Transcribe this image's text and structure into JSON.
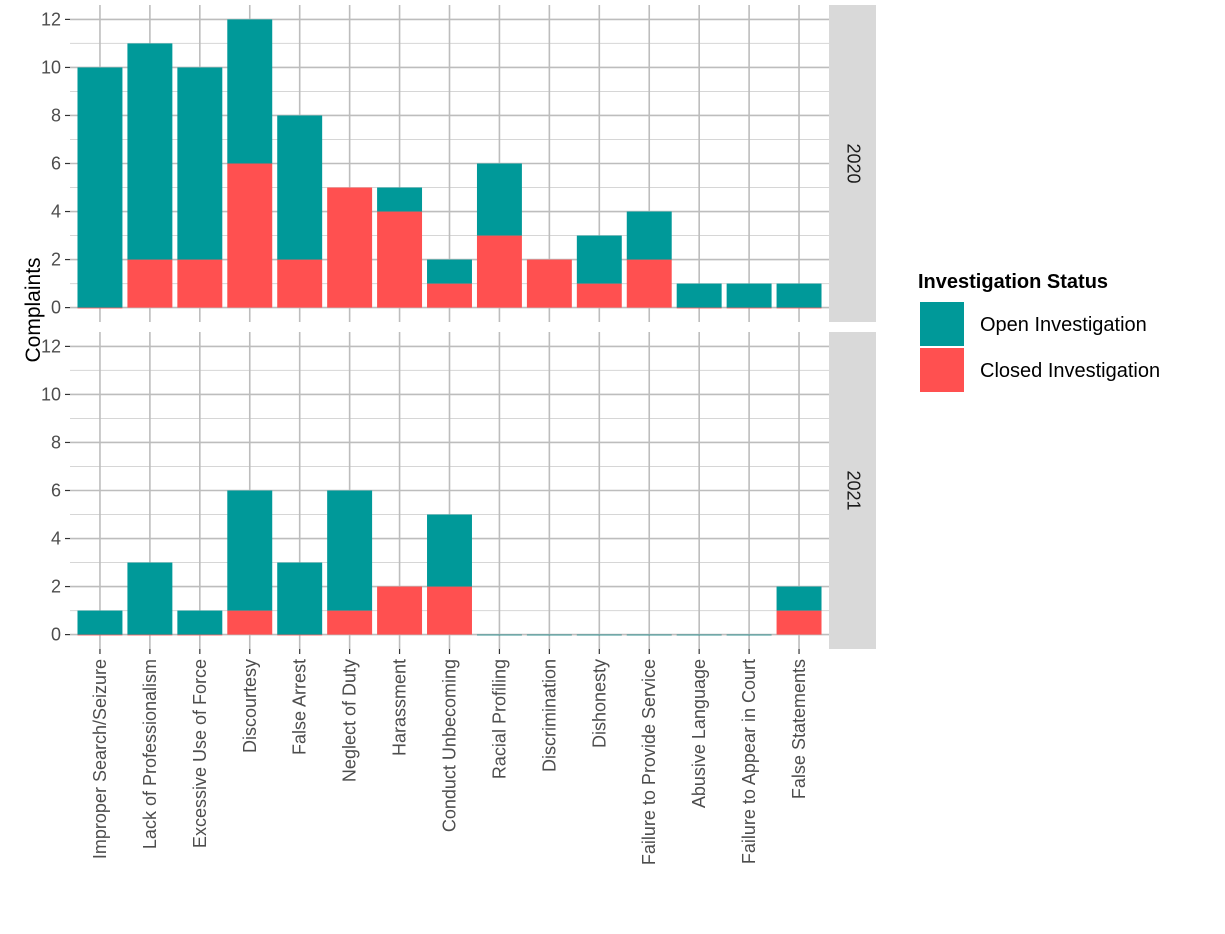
{
  "chart_data": {
    "type": "bar",
    "stacked": true,
    "faceted_by": "year",
    "title": "",
    "xlabel": "",
    "ylabel": "Complaints",
    "ylim": [
      0,
      12
    ],
    "yticks": [
      0,
      2,
      4,
      6,
      8,
      10,
      12
    ],
    "grid": true,
    "legend_position": "right",
    "legend_title": "Investigation Status",
    "categories": [
      "Improper Search/Seizure",
      "Lack of Professionalism",
      "Excessive Use of Force",
      "Discourtesy",
      "False Arrest",
      "Neglect of Duty",
      "Harassment",
      "Conduct Unbecoming",
      "Racial Profiling",
      "Discrimination",
      "Dishonesty",
      "Failure to Provide Service",
      "Abusive Language",
      "Failure to Appear in Court",
      "False Statements"
    ],
    "series_meta": [
      {
        "name": "Open Investigation",
        "color": "#009999"
      },
      {
        "name": "Closed Investigation",
        "color": "#ff5050"
      }
    ],
    "facets": [
      {
        "label": "2020",
        "series": [
          {
            "name": "Open Investigation",
            "values": [
              10,
              9,
              8,
              6,
              6,
              0,
              1,
              1,
              3,
              0,
              2,
              2,
              1,
              1,
              1
            ]
          },
          {
            "name": "Closed Investigation",
            "values": [
              0,
              2,
              2,
              6,
              2,
              5,
              4,
              1,
              3,
              2,
              1,
              2,
              0,
              0,
              0
            ]
          }
        ]
      },
      {
        "label": "2021",
        "series": [
          {
            "name": "Open Investigation",
            "values": [
              1,
              3,
              1,
              5,
              3,
              5,
              0,
              3,
              0,
              0,
              0,
              0,
              0,
              0,
              1
            ]
          },
          {
            "name": "Closed Investigation",
            "values": [
              0,
              0,
              0,
              1,
              0,
              1,
              2,
              2,
              0,
              0,
              0,
              0,
              0,
              0,
              1
            ]
          }
        ]
      }
    ]
  }
}
